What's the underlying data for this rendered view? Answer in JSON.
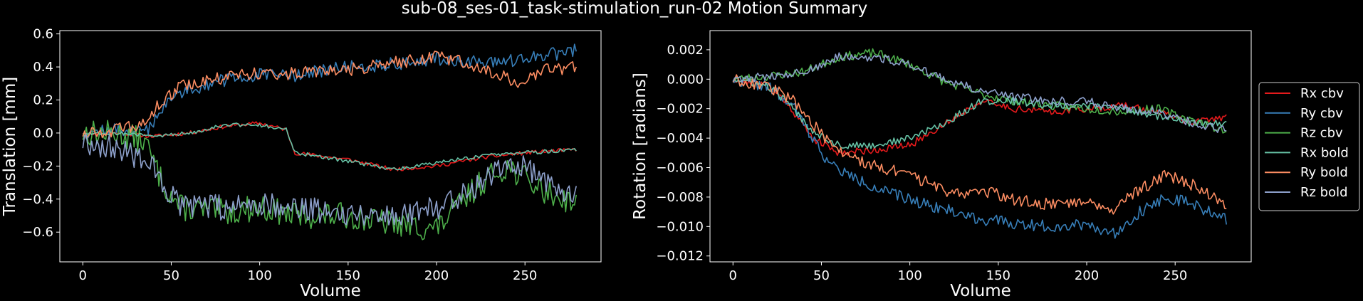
{
  "figure": {
    "title": "sub-08_ses-01_task-stimulation_run-02 Motion Summary",
    "background": "#000000",
    "foreground": "#ffffff"
  },
  "legend": {
    "placement": "right",
    "entries": [
      {
        "label": "Rx cbv",
        "color": "#e41a1c"
      },
      {
        "label": "Ry cbv",
        "color": "#377eb8"
      },
      {
        "label": "Rz cbv",
        "color": "#4daf4a"
      },
      {
        "label": "Rx bold",
        "color": "#66c2a5"
      },
      {
        "label": "Ry bold",
        "color": "#fc8d62"
      },
      {
        "label": "Rz bold",
        "color": "#8da0cb"
      }
    ]
  },
  "chart_data": [
    {
      "type": "line",
      "xlabel": "Volume",
      "ylabel": "Translation [mm]",
      "xlim": [
        -13,
        293
      ],
      "ylim": [
        -0.78,
        0.62
      ],
      "xticks": [
        0,
        50,
        100,
        150,
        200,
        250
      ],
      "xtick_labels": [
        "0",
        "50",
        "100",
        "150",
        "200",
        "250"
      ],
      "yticks": [
        -0.6,
        -0.4,
        -0.2,
        0.0,
        0.2,
        0.4,
        0.6
      ],
      "ytick_labels": [
        "−0.6",
        "−0.4",
        "−0.2",
        "0.0",
        "0.2",
        "0.4",
        "0.6"
      ],
      "grid": false,
      "x_start": 0,
      "x_end": 279,
      "series": [
        {
          "color": "#e41a1c",
          "noise": 0.012,
          "seed": 11,
          "points": [
            [
              0,
              0.0
            ],
            [
              20,
              0.0
            ],
            [
              40,
              -0.02
            ],
            [
              60,
              0.0
            ],
            [
              80,
              0.04
            ],
            [
              100,
              0.06
            ],
            [
              115,
              0.02
            ],
            [
              120,
              -0.12
            ],
            [
              150,
              -0.16
            ],
            [
              175,
              -0.22
            ],
            [
              200,
              -0.2
            ],
            [
              225,
              -0.15
            ],
            [
              250,
              -0.12
            ],
            [
              279,
              -0.1
            ]
          ]
        },
        {
          "color": "#377eb8",
          "noise": 0.04,
          "seed": 12,
          "points": [
            [
              0,
              0.0
            ],
            [
              20,
              0.02
            ],
            [
              35,
              0.0
            ],
            [
              45,
              0.15
            ],
            [
              55,
              0.25
            ],
            [
              80,
              0.32
            ],
            [
              100,
              0.35
            ],
            [
              120,
              0.35
            ],
            [
              150,
              0.4
            ],
            [
              180,
              0.42
            ],
            [
              200,
              0.45
            ],
            [
              230,
              0.42
            ],
            [
              250,
              0.45
            ],
            [
              279,
              0.5
            ]
          ]
        },
        {
          "color": "#4daf4a",
          "noise": 0.08,
          "seed": 13,
          "points": [
            [
              0,
              0.0
            ],
            [
              20,
              0.0
            ],
            [
              35,
              -0.05
            ],
            [
              45,
              -0.3
            ],
            [
              55,
              -0.45
            ],
            [
              80,
              -0.48
            ],
            [
              100,
              -0.45
            ],
            [
              120,
              -0.5
            ],
            [
              150,
              -0.5
            ],
            [
              175,
              -0.55
            ],
            [
              200,
              -0.58
            ],
            [
              225,
              -0.3
            ],
            [
              240,
              -0.2
            ],
            [
              260,
              -0.35
            ],
            [
              279,
              -0.42
            ]
          ]
        },
        {
          "color": "#66c2a5",
          "noise": 0.012,
          "seed": 14,
          "points": [
            [
              0,
              0.0
            ],
            [
              20,
              0.0
            ],
            [
              40,
              -0.02
            ],
            [
              60,
              0.0
            ],
            [
              80,
              0.05
            ],
            [
              100,
              0.05
            ],
            [
              115,
              0.02
            ],
            [
              120,
              -0.12
            ],
            [
              150,
              -0.17
            ],
            [
              175,
              -0.22
            ],
            [
              200,
              -0.18
            ],
            [
              225,
              -0.14
            ],
            [
              250,
              -0.12
            ],
            [
              279,
              -0.1
            ]
          ]
        },
        {
          "color": "#fc8d62",
          "noise": 0.04,
          "seed": 15,
          "points": [
            [
              0,
              0.0
            ],
            [
              20,
              0.02
            ],
            [
              35,
              0.05
            ],
            [
              45,
              0.2
            ],
            [
              55,
              0.28
            ],
            [
              80,
              0.34
            ],
            [
              100,
              0.36
            ],
            [
              120,
              0.36
            ],
            [
              150,
              0.38
            ],
            [
              180,
              0.43
            ],
            [
              200,
              0.47
            ],
            [
              230,
              0.38
            ],
            [
              245,
              0.3
            ],
            [
              260,
              0.38
            ],
            [
              279,
              0.4
            ]
          ]
        },
        {
          "color": "#8da0cb",
          "noise": 0.08,
          "seed": 16,
          "points": [
            [
              0,
              -0.05
            ],
            [
              20,
              -0.1
            ],
            [
              35,
              -0.15
            ],
            [
              45,
              -0.3
            ],
            [
              55,
              -0.45
            ],
            [
              80,
              -0.45
            ],
            [
              100,
              -0.42
            ],
            [
              120,
              -0.45
            ],
            [
              150,
              -0.48
            ],
            [
              175,
              -0.5
            ],
            [
              200,
              -0.45
            ],
            [
              225,
              -0.3
            ],
            [
              240,
              -0.15
            ],
            [
              255,
              -0.25
            ],
            [
              279,
              -0.38
            ]
          ]
        }
      ]
    },
    {
      "type": "line",
      "xlabel": "Volume",
      "ylabel": "Rotation [radians]",
      "xlim": [
        -13,
        293
      ],
      "ylim": [
        -0.0124,
        0.0033
      ],
      "xticks": [
        0,
        50,
        100,
        150,
        200,
        250
      ],
      "xtick_labels": [
        "0",
        "50",
        "100",
        "150",
        "200",
        "250"
      ],
      "yticks": [
        -0.012,
        -0.01,
        -0.008,
        -0.006,
        -0.004,
        -0.002,
        0.0,
        0.002
      ],
      "ytick_labels": [
        "−0.012",
        "−0.010",
        "−0.008",
        "−0.006",
        "−0.004",
        "−0.002",
        "0.000",
        "0.002"
      ],
      "grid": false,
      "x_start": 0,
      "x_end": 279,
      "series": [
        {
          "color": "#e41a1c",
          "noise": 0.00025,
          "seed": 21,
          "points": [
            [
              0,
              0.0
            ],
            [
              20,
              -0.0005
            ],
            [
              30,
              -0.0015
            ],
            [
              45,
              -0.004
            ],
            [
              60,
              -0.005
            ],
            [
              80,
              -0.0048
            ],
            [
              100,
              -0.0045
            ],
            [
              120,
              -0.003
            ],
            [
              140,
              -0.0015
            ],
            [
              160,
              -0.002
            ],
            [
              180,
              -0.0022
            ],
            [
              200,
              -0.002
            ],
            [
              220,
              -0.0018
            ],
            [
              240,
              -0.0022
            ],
            [
              260,
              -0.003
            ],
            [
              279,
              -0.0025
            ]
          ]
        },
        {
          "color": "#377eb8",
          "noise": 0.0004,
          "seed": 22,
          "points": [
            [
              0,
              0.0
            ],
            [
              20,
              -0.0005
            ],
            [
              35,
              -0.002
            ],
            [
              45,
              -0.004
            ],
            [
              55,
              -0.0058
            ],
            [
              70,
              -0.0068
            ],
            [
              90,
              -0.0078
            ],
            [
              110,
              -0.0085
            ],
            [
              125,
              -0.009
            ],
            [
              140,
              -0.0095
            ],
            [
              160,
              -0.0098
            ],
            [
              180,
              -0.01
            ],
            [
              200,
              -0.0098
            ],
            [
              215,
              -0.0105
            ],
            [
              230,
              -0.009
            ],
            [
              245,
              -0.008
            ],
            [
              260,
              -0.0085
            ],
            [
              279,
              -0.0095
            ]
          ]
        },
        {
          "color": "#4daf4a",
          "noise": 0.0003,
          "seed": 23,
          "points": [
            [
              0,
              0.0
            ],
            [
              20,
              0.0002
            ],
            [
              40,
              0.0005
            ],
            [
              60,
              0.0015
            ],
            [
              80,
              0.0018
            ],
            [
              100,
              0.001
            ],
            [
              120,
              -0.0002
            ],
            [
              140,
              -0.001
            ],
            [
              160,
              -0.0015
            ],
            [
              180,
              -0.0018
            ],
            [
              200,
              -0.002
            ],
            [
              220,
              -0.0022
            ],
            [
              240,
              -0.002
            ],
            [
              260,
              -0.0028
            ],
            [
              279,
              -0.0035
            ]
          ]
        },
        {
          "color": "#66c2a5",
          "noise": 0.00025,
          "seed": 24,
          "points": [
            [
              0,
              0.0
            ],
            [
              20,
              -0.0005
            ],
            [
              30,
              -0.0015
            ],
            [
              45,
              -0.0035
            ],
            [
              60,
              -0.0045
            ],
            [
              80,
              -0.0045
            ],
            [
              100,
              -0.004
            ],
            [
              120,
              -0.003
            ],
            [
              140,
              -0.0015
            ],
            [
              160,
              -0.0015
            ],
            [
              180,
              -0.0018
            ],
            [
              200,
              -0.0018
            ],
            [
              220,
              -0.002
            ],
            [
              240,
              -0.0025
            ],
            [
              260,
              -0.003
            ],
            [
              279,
              -0.003
            ]
          ]
        },
        {
          "color": "#fc8d62",
          "noise": 0.0004,
          "seed": 25,
          "points": [
            [
              0,
              0.0
            ],
            [
              20,
              -0.0005
            ],
            [
              35,
              -0.0015
            ],
            [
              45,
              -0.003
            ],
            [
              55,
              -0.0045
            ],
            [
              70,
              -0.0055
            ],
            [
              90,
              -0.0062
            ],
            [
              110,
              -0.007
            ],
            [
              125,
              -0.0078
            ],
            [
              140,
              -0.0075
            ],
            [
              160,
              -0.0082
            ],
            [
              180,
              -0.0085
            ],
            [
              200,
              -0.0082
            ],
            [
              215,
              -0.0088
            ],
            [
              230,
              -0.0075
            ],
            [
              245,
              -0.0065
            ],
            [
              260,
              -0.0072
            ],
            [
              279,
              -0.0085
            ]
          ]
        },
        {
          "color": "#8da0cb",
          "noise": 0.0003,
          "seed": 26,
          "points": [
            [
              0,
              0.0
            ],
            [
              20,
              0.0002
            ],
            [
              40,
              0.0005
            ],
            [
              60,
              0.0015
            ],
            [
              80,
              0.0015
            ],
            [
              100,
              0.001
            ],
            [
              120,
              0.0
            ],
            [
              140,
              -0.0008
            ],
            [
              160,
              -0.0012
            ],
            [
              180,
              -0.0015
            ],
            [
              200,
              -0.0015
            ],
            [
              220,
              -0.002
            ],
            [
              240,
              -0.0022
            ],
            [
              260,
              -0.003
            ],
            [
              279,
              -0.0035
            ]
          ]
        }
      ]
    }
  ]
}
